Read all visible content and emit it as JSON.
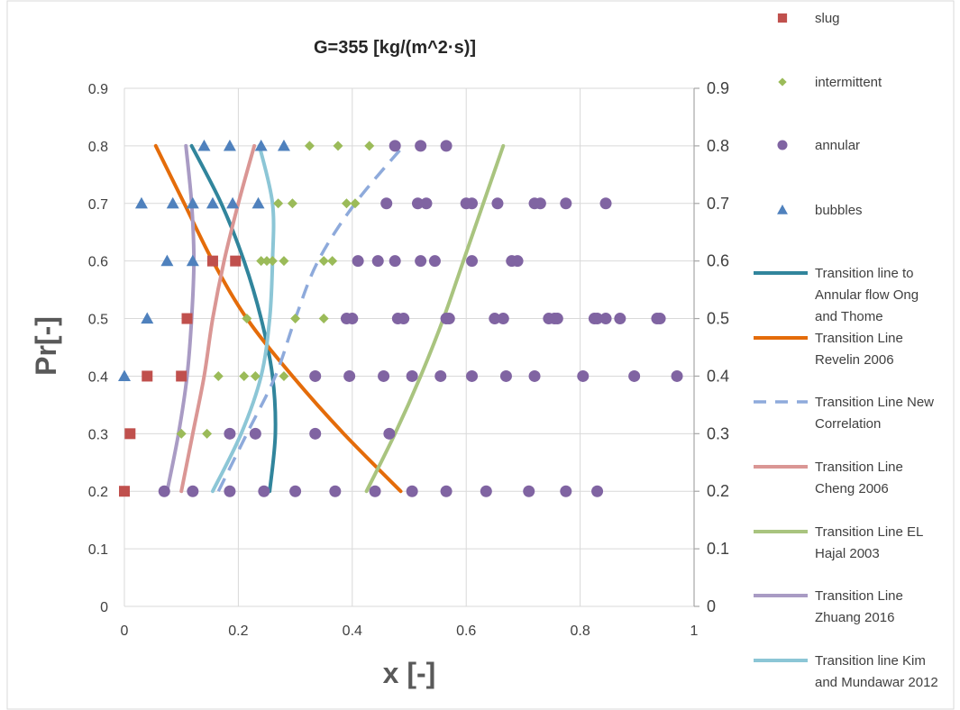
{
  "chart_data": {
    "type": "scatter",
    "title": "G=355 [kg/(m^2·s)]",
    "xlabel": "x [-]",
    "ylabel": "Pr[-]",
    "xlim": [
      0,
      1
    ],
    "ylim": [
      0,
      0.9
    ],
    "x_ticks": [
      "0",
      "0.2",
      "0.4",
      "0.6",
      "0.8",
      "1"
    ],
    "y_ticks": [
      "0",
      "0.1",
      "0.2",
      "0.3",
      "0.4",
      "0.5",
      "0.6",
      "0.7",
      "0.8",
      "0.9"
    ],
    "secondary_y_ticks": [
      "0",
      "0.1",
      "0.2",
      "0.3",
      "0.4",
      "0.5",
      "0.6",
      "0.7",
      "0.8",
      "0.9"
    ],
    "grid": true,
    "legend_position": "right",
    "series": [
      {
        "name": "slug",
        "kind": "markers",
        "marker": "square",
        "color": "#c0504d",
        "points": [
          [
            0.0,
            0.2
          ],
          [
            0.01,
            0.3
          ],
          [
            0.04,
            0.4
          ],
          [
            0.1,
            0.4
          ],
          [
            0.11,
            0.5
          ],
          [
            0.155,
            0.6
          ],
          [
            0.195,
            0.6
          ]
        ]
      },
      {
        "name": "intermittent",
        "kind": "markers",
        "marker": "diamond",
        "color": "#9bbb59",
        "points": [
          [
            0.1,
            0.3
          ],
          [
            0.145,
            0.3
          ],
          [
            0.165,
            0.4
          ],
          [
            0.21,
            0.4
          ],
          [
            0.23,
            0.4
          ],
          [
            0.28,
            0.4
          ],
          [
            0.215,
            0.5
          ],
          [
            0.3,
            0.5
          ],
          [
            0.35,
            0.5
          ],
          [
            0.24,
            0.6
          ],
          [
            0.25,
            0.6
          ],
          [
            0.26,
            0.6
          ],
          [
            0.28,
            0.6
          ],
          [
            0.35,
            0.6
          ],
          [
            0.365,
            0.6
          ],
          [
            0.27,
            0.7
          ],
          [
            0.295,
            0.7
          ],
          [
            0.39,
            0.7
          ],
          [
            0.405,
            0.7
          ],
          [
            0.325,
            0.8
          ],
          [
            0.375,
            0.8
          ],
          [
            0.43,
            0.8
          ]
        ]
      },
      {
        "name": "annular",
        "kind": "markers",
        "marker": "circle",
        "color": "#8064a2",
        "points": [
          [
            0.07,
            0.2
          ],
          [
            0.12,
            0.2
          ],
          [
            0.185,
            0.2
          ],
          [
            0.245,
            0.2
          ],
          [
            0.3,
            0.2
          ],
          [
            0.37,
            0.2
          ],
          [
            0.44,
            0.2
          ],
          [
            0.505,
            0.2
          ],
          [
            0.565,
            0.2
          ],
          [
            0.635,
            0.2
          ],
          [
            0.71,
            0.2
          ],
          [
            0.775,
            0.2
          ],
          [
            0.83,
            0.2
          ],
          [
            0.185,
            0.3
          ],
          [
            0.23,
            0.3
          ],
          [
            0.335,
            0.3
          ],
          [
            0.465,
            0.3
          ],
          [
            0.335,
            0.4
          ],
          [
            0.395,
            0.4
          ],
          [
            0.455,
            0.4
          ],
          [
            0.505,
            0.4
          ],
          [
            0.555,
            0.4
          ],
          [
            0.61,
            0.4
          ],
          [
            0.67,
            0.4
          ],
          [
            0.72,
            0.4
          ],
          [
            0.805,
            0.4
          ],
          [
            0.895,
            0.4
          ],
          [
            0.97,
            0.4
          ],
          [
            0.39,
            0.5
          ],
          [
            0.4,
            0.5
          ],
          [
            0.48,
            0.5
          ],
          [
            0.49,
            0.5
          ],
          [
            0.565,
            0.5
          ],
          [
            0.57,
            0.5
          ],
          [
            0.65,
            0.5
          ],
          [
            0.665,
            0.5
          ],
          [
            0.745,
            0.5
          ],
          [
            0.755,
            0.5
          ],
          [
            0.76,
            0.5
          ],
          [
            0.825,
            0.5
          ],
          [
            0.83,
            0.5
          ],
          [
            0.845,
            0.5
          ],
          [
            0.87,
            0.5
          ],
          [
            0.935,
            0.5
          ],
          [
            0.94,
            0.5
          ],
          [
            0.41,
            0.6
          ],
          [
            0.445,
            0.6
          ],
          [
            0.475,
            0.6
          ],
          [
            0.52,
            0.6
          ],
          [
            0.545,
            0.6
          ],
          [
            0.61,
            0.6
          ],
          [
            0.68,
            0.6
          ],
          [
            0.69,
            0.6
          ],
          [
            0.46,
            0.7
          ],
          [
            0.515,
            0.7
          ],
          [
            0.53,
            0.7
          ],
          [
            0.6,
            0.7
          ],
          [
            0.61,
            0.7
          ],
          [
            0.655,
            0.7
          ],
          [
            0.72,
            0.7
          ],
          [
            0.73,
            0.7
          ],
          [
            0.775,
            0.7
          ],
          [
            0.845,
            0.7
          ],
          [
            0.475,
            0.8
          ],
          [
            0.52,
            0.8
          ],
          [
            0.565,
            0.8
          ]
        ]
      },
      {
        "name": "bubbles",
        "kind": "markers",
        "marker": "triangle",
        "color": "#4f81bd",
        "points": [
          [
            0.0,
            0.4
          ],
          [
            0.04,
            0.5
          ],
          [
            0.075,
            0.6
          ],
          [
            0.12,
            0.6
          ],
          [
            0.03,
            0.7
          ],
          [
            0.085,
            0.7
          ],
          [
            0.12,
            0.7
          ],
          [
            0.155,
            0.7
          ],
          [
            0.19,
            0.7
          ],
          [
            0.235,
            0.7
          ],
          [
            0.14,
            0.8
          ],
          [
            0.185,
            0.8
          ],
          [
            0.24,
            0.8
          ],
          [
            0.28,
            0.8
          ]
        ]
      },
      {
        "name": "Transition line to Annular flow Ong and Thome",
        "kind": "line",
        "color": "#31859c",
        "width": 4,
        "points": [
          [
            0.255,
            0.2
          ],
          [
            0.265,
            0.3
          ],
          [
            0.26,
            0.4
          ],
          [
            0.24,
            0.5
          ],
          [
            0.21,
            0.6
          ],
          [
            0.17,
            0.7
          ],
          [
            0.118,
            0.8
          ]
        ]
      },
      {
        "name": "Transition Line Revelin 2006",
        "kind": "line",
        "color": "#e46c0a",
        "width": 4,
        "points": [
          [
            0.485,
            0.2
          ],
          [
            0.385,
            0.3
          ],
          [
            0.295,
            0.4
          ],
          [
            0.215,
            0.5
          ],
          [
            0.155,
            0.6
          ],
          [
            0.105,
            0.7
          ],
          [
            0.055,
            0.8
          ]
        ]
      },
      {
        "name": "Transition Line New Correlation",
        "kind": "line",
        "color": "#8eaadb",
        "width": 3.5,
        "dash": true,
        "points": [
          [
            0.165,
            0.2
          ],
          [
            0.215,
            0.3
          ],
          [
            0.265,
            0.4
          ],
          [
            0.3,
            0.5
          ],
          [
            0.34,
            0.6
          ],
          [
            0.405,
            0.7
          ],
          [
            0.49,
            0.8
          ]
        ]
      },
      {
        "name": "Transition Line Cheng 2006",
        "kind": "line",
        "color": "#da9694",
        "width": 4,
        "points": [
          [
            0.1,
            0.2
          ],
          [
            0.12,
            0.3
          ],
          [
            0.14,
            0.4
          ],
          [
            0.155,
            0.5
          ],
          [
            0.175,
            0.6
          ],
          [
            0.2,
            0.7
          ],
          [
            0.228,
            0.8
          ]
        ]
      },
      {
        "name": "Transition Line EL Hajal 2003",
        "kind": "line",
        "color": "#a9c47f",
        "width": 4,
        "points": [
          [
            0.425,
            0.2
          ],
          [
            0.475,
            0.3
          ],
          [
            0.52,
            0.4
          ],
          [
            0.56,
            0.5
          ],
          [
            0.595,
            0.6
          ],
          [
            0.63,
            0.7
          ],
          [
            0.665,
            0.8
          ]
        ]
      },
      {
        "name": "Transition Line Zhuang 2016",
        "kind": "line",
        "color": "#a99bc4",
        "width": 4,
        "points": [
          [
            0.075,
            0.2
          ],
          [
            0.095,
            0.3
          ],
          [
            0.11,
            0.4
          ],
          [
            0.118,
            0.5
          ],
          [
            0.122,
            0.6
          ],
          [
            0.118,
            0.7
          ],
          [
            0.108,
            0.8
          ]
        ]
      },
      {
        "name": "Transition line Kim and Mundawar 2012",
        "kind": "line",
        "color": "#8cc6d6",
        "width": 4,
        "points": [
          [
            0.155,
            0.2
          ],
          [
            0.205,
            0.3
          ],
          [
            0.24,
            0.4
          ],
          [
            0.255,
            0.5
          ],
          [
            0.26,
            0.6
          ],
          [
            0.26,
            0.7
          ],
          [
            0.237,
            0.8
          ]
        ]
      }
    ]
  }
}
